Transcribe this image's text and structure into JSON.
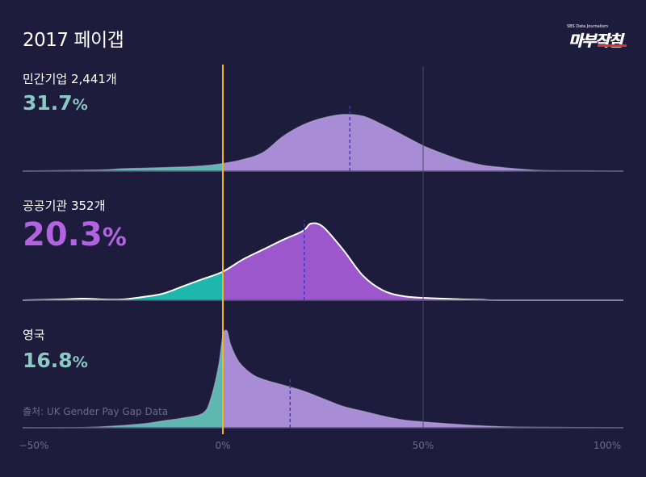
{
  "title": "2017 페이갭",
  "logo": {
    "text": "마부작침",
    "tagline": "SBS Data Journalism"
  },
  "source": "출처: UK Gender Pay Gap Data",
  "colors": {
    "background": "#1d1c3c",
    "zero_line": "#f2b31e",
    "negative_fill": "#5fb8b0",
    "positive_fill": "#a98cd6",
    "highlight_negative": "#1fb6ad",
    "highlight_positive": "#9b57cb",
    "median_line": "#3d37c8"
  },
  "panels": [
    {
      "label": "민간기업 2,441개",
      "value": "31.7",
      "unit": "%"
    },
    {
      "label": "공공기관 352개",
      "value": "20.3",
      "unit": "%"
    },
    {
      "label": "영국",
      "value": "16.8",
      "unit": "%"
    }
  ],
  "chart_data": [
    {
      "type": "area",
      "title": "민간기업 2,441개",
      "xlim": [
        -50,
        100
      ],
      "median": 31.7,
      "density_x": [
        -50,
        -40,
        -30,
        -25,
        -20,
        -15,
        -10,
        -5,
        0,
        5,
        10,
        15,
        20,
        25,
        30,
        35,
        40,
        45,
        50,
        55,
        60,
        65,
        70,
        75,
        80,
        90,
        100
      ],
      "density_y": [
        0,
        0.01,
        0.02,
        0.04,
        0.05,
        0.06,
        0.07,
        0.09,
        0.13,
        0.2,
        0.32,
        0.6,
        0.8,
        0.92,
        0.98,
        0.95,
        0.8,
        0.62,
        0.44,
        0.3,
        0.18,
        0.1,
        0.06,
        0.03,
        0.01,
        0.005,
        0
      ]
    },
    {
      "type": "area",
      "title": "공공기관 352개",
      "xlim": [
        -50,
        100
      ],
      "median": 20.3,
      "density_x": [
        -50,
        -40,
        -35,
        -30,
        -25,
        -20,
        -15,
        -10,
        -5,
        0,
        5,
        10,
        15,
        20,
        22,
        25,
        30,
        35,
        40,
        45,
        50,
        55,
        60,
        65,
        70,
        100
      ],
      "density_y": [
        0,
        0.01,
        0.02,
        0.01,
        0.01,
        0.04,
        0.08,
        0.17,
        0.26,
        0.35,
        0.5,
        0.62,
        0.74,
        0.85,
        0.94,
        0.9,
        0.62,
        0.3,
        0.12,
        0.05,
        0.03,
        0.02,
        0.01,
        0.005,
        0,
        0
      ]
    },
    {
      "type": "area",
      "title": "영국",
      "xlim": [
        -50,
        100
      ],
      "median": 16.8,
      "density_x": [
        -50,
        -40,
        -30,
        -20,
        -15,
        -10,
        -5,
        -3,
        -1,
        0,
        1,
        2,
        4,
        7,
        10,
        15,
        20,
        25,
        30,
        35,
        40,
        45,
        50,
        60,
        70,
        80,
        100
      ],
      "density_y": [
        0,
        0,
        0.01,
        0.04,
        0.07,
        0.1,
        0.15,
        0.3,
        0.65,
        0.95,
        1.0,
        0.85,
        0.68,
        0.56,
        0.5,
        0.44,
        0.38,
        0.3,
        0.22,
        0.17,
        0.12,
        0.08,
        0.06,
        0.03,
        0.01,
        0.005,
        0
      ]
    }
  ],
  "x_ticks": [
    "−50%",
    "0%",
    "50%",
    "100%"
  ],
  "x_tick_values": [
    -50,
    0,
    50,
    100
  ]
}
